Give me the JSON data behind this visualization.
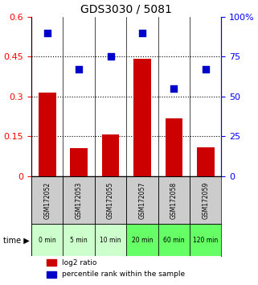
{
  "title": "GDS3030 / 5081",
  "samples": [
    "GSM172052",
    "GSM172053",
    "GSM172055",
    "GSM172057",
    "GSM172058",
    "GSM172059"
  ],
  "time_labels": [
    "0 min",
    "5 min",
    "10 min",
    "20 min",
    "60 min",
    "120 min"
  ],
  "log2_ratio": [
    0.315,
    0.105,
    0.158,
    0.442,
    0.218,
    0.108
  ],
  "percentile_rank": [
    90,
    67,
    75,
    90,
    55,
    67
  ],
  "bar_color": "#cc0000",
  "dot_color": "#0000cc",
  "ylim_left": [
    0,
    0.6
  ],
  "ylim_right": [
    0,
    100
  ],
  "yticks_left": [
    0,
    0.15,
    0.3,
    0.45,
    0.6
  ],
  "ytick_labels_left": [
    "0",
    "0.15",
    "0.3",
    "0.45",
    "0.6"
  ],
  "yticks_right": [
    0,
    25,
    50,
    75,
    100
  ],
  "ytick_labels_right": [
    "0",
    "25",
    "50",
    "75",
    "100%"
  ],
  "hlines": [
    0.15,
    0.3,
    0.45
  ],
  "time_row_colors": [
    "#ccffcc",
    "#ccffcc",
    "#ccffcc",
    "#66ff66",
    "#66ff66",
    "#66ff66"
  ],
  "sample_row_bg": "#cccccc",
  "legend_items": [
    {
      "label": "log2 ratio",
      "color": "#cc0000"
    },
    {
      "label": "percentile rank within the sample",
      "color": "#0000cc"
    }
  ]
}
